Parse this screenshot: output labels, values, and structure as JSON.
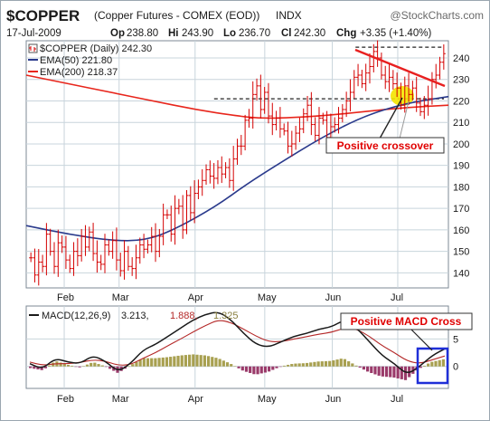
{
  "header": {
    "symbol": "$COPPER",
    "description": "(Copper Futures - COMEX (EOD))",
    "exchange": "INDX",
    "source": "@StockCharts.com",
    "date": "17-Jul-2009",
    "open_label": "Op",
    "open": "238.80",
    "high_label": "Hi",
    "high": "243.90",
    "low_label": "Lo",
    "low": "236.70",
    "close_label": "Cl",
    "close": "242.30",
    "change_label": "Chg",
    "change": "+3.35 (+1.40%)"
  },
  "legend": {
    "price": "$COPPER (Daily) 242.30",
    "ema50": "EMA(50) 221.80",
    "ema200": "EMA(200) 218.37",
    "macd_name": "MACD(12,26,9)",
    "macd_value": "3.213,",
    "macd_signal": "1.888,",
    "macd_hist": "1.325"
  },
  "annotations": {
    "positive_crossover": "Positive crossover",
    "positive_macd_cross": "Positive MACD Cross"
  },
  "colors": {
    "up": "#d40000",
    "down": "#d40000",
    "ema50": "#2a3a8c",
    "ema200": "#e8261c",
    "macd": "#1a1a1a",
    "signal": "#b42828",
    "hist_pos": "#a8a050",
    "hist_neg": "#9a3a6a",
    "highlight": "#f4e400",
    "box": "#1f2fd8",
    "panel_bg": "#ffffff",
    "grid": "#c8d4dc"
  },
  "chart_data": [
    {
      "type": "line",
      "title": "$COPPER (Daily)",
      "x_ticks": [
        "Feb",
        "Mar",
        "Apr",
        "May",
        "Jun",
        "Jul"
      ],
      "y_ticks": [
        140,
        150,
        160,
        170,
        180,
        190,
        200,
        210,
        220,
        230,
        240
      ],
      "ylim": [
        133,
        248
      ],
      "grid": true,
      "legend_position": "top-left",
      "reference_levels": [
        221,
        245
      ],
      "series": [
        {
          "name": "$COPPER (Daily)",
          "kind": "ohlc",
          "values": [
            147,
            139,
            145,
            143,
            158,
            150,
            143,
            154,
            152,
            146,
            142,
            150,
            148,
            157,
            152,
            159,
            149,
            145,
            144,
            153,
            150,
            155,
            146,
            141,
            150,
            143,
            142,
            147,
            153,
            151,
            153,
            157,
            150,
            157,
            167,
            167,
            158,
            170,
            171,
            160,
            176,
            168,
            177,
            180,
            183,
            188,
            185,
            184,
            189,
            186,
            189,
            183,
            193,
            199,
            199,
            211,
            212,
            223,
            227,
            216,
            224,
            213,
            209,
            212,
            207,
            206,
            199,
            200,
            205,
            207,
            214,
            218,
            209,
            204,
            212,
            211,
            203,
            208,
            209,
            212,
            216,
            220,
            224,
            231,
            232,
            228,
            233,
            236,
            243,
            240,
            232,
            229,
            231,
            228,
            226,
            218,
            227,
            223,
            226,
            219,
            215,
            218,
            221,
            230,
            232,
            238,
            242
          ]
        },
        {
          "name": "EMA(50)",
          "x_frac": [
            0.0,
            0.1,
            0.2,
            0.28,
            0.35,
            0.45,
            0.52,
            0.6,
            0.7,
            0.8,
            0.9,
            1.0
          ],
          "values": [
            162,
            158,
            155,
            155,
            160,
            171,
            181,
            191,
            203,
            213,
            219,
            222
          ]
        },
        {
          "name": "EMA(200)",
          "x_frac": [
            0.0,
            0.1,
            0.2,
            0.3,
            0.4,
            0.5,
            0.55,
            0.6,
            0.7,
            0.8,
            0.9,
            1.0
          ],
          "values": [
            232,
            228,
            224,
            220,
            216,
            213,
            212,
            212,
            213,
            215,
            217,
            218
          ]
        }
      ]
    },
    {
      "type": "line",
      "title": "MACD(12,26,9)",
      "x_ticks": [
        "Feb",
        "Mar",
        "Apr",
        "May",
        "Jun",
        "Jul"
      ],
      "y_ticks": [
        0,
        5
      ],
      "ylim": [
        -4,
        11
      ],
      "grid": true,
      "series": [
        {
          "name": "MACD",
          "values": [
            0.5,
            -0.5,
            1.5,
            0.8,
            0.5,
            2.0,
            1.0,
            -1.0,
            0.5,
            3.0,
            4.0,
            5.5,
            7.0,
            8.5,
            9.5,
            10.0,
            8.5,
            6.0,
            4.0,
            3.5,
            4.5,
            5.5,
            6.0,
            6.8,
            7.2,
            8.5,
            7.0,
            4.5,
            2.0,
            0.5,
            -1.5,
            0.0,
            2.0,
            3.2
          ]
        },
        {
          "name": "Signal",
          "values": [
            0.8,
            0.2,
            0.5,
            0.5,
            0.7,
            1.2,
            1.0,
            0.2,
            0.3,
            1.5,
            2.5,
            3.8,
            5.0,
            6.3,
            7.5,
            8.5,
            8.0,
            6.8,
            5.5,
            4.5,
            4.5,
            5.0,
            5.4,
            5.9,
            6.2,
            7.0,
            6.8,
            5.5,
            3.8,
            2.5,
            1.0,
            0.5,
            1.2,
            1.9
          ]
        },
        {
          "name": "Histogram",
          "kind": "bars",
          "values": [
            -0.3,
            -0.7,
            1.0,
            0.3,
            -0.2,
            0.8,
            0.0,
            -1.2,
            0.2,
            1.5,
            1.5,
            1.7,
            2.0,
            2.2,
            2.0,
            1.5,
            0.5,
            -0.8,
            -1.5,
            -1.0,
            0.0,
            0.5,
            0.6,
            0.9,
            1.0,
            1.5,
            0.2,
            -1.0,
            -1.8,
            -2.0,
            -2.5,
            -0.5,
            0.8,
            1.3
          ]
        }
      ]
    }
  ]
}
